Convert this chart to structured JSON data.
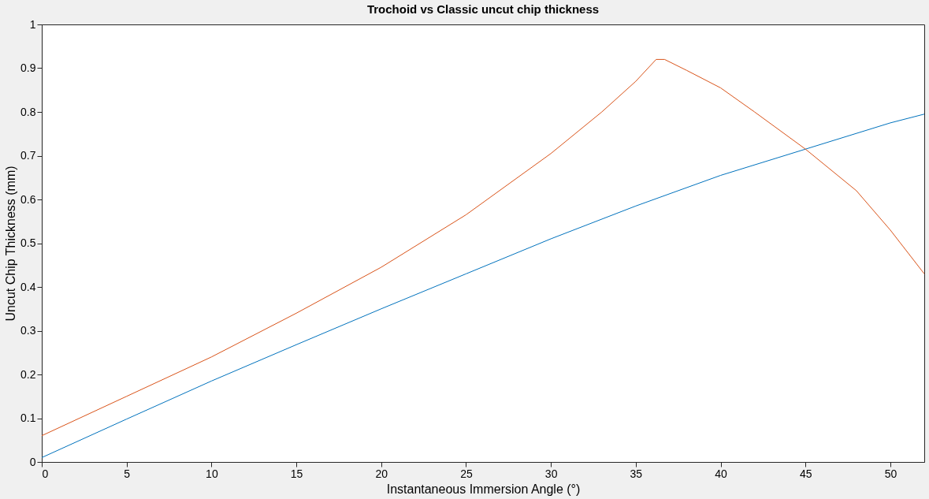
{
  "chart_data": {
    "type": "line",
    "title": "Trochoid vs Classic uncut chip thickness",
    "xlabel": "Instantaneous Immersion Angle (°)",
    "ylabel": "Uncut Chip Thickness (mm)",
    "xlim": [
      0,
      52
    ],
    "xticks": [
      0,
      5,
      10,
      15,
      20,
      25,
      30,
      35,
      40,
      45,
      50
    ],
    "ylim": [
      0,
      1
    ],
    "yticks": [
      0,
      0.1,
      0.2,
      0.3,
      0.4,
      0.5,
      0.6,
      0.7,
      0.8,
      0.9,
      1
    ],
    "grid": false,
    "legend": false,
    "marker": "none",
    "line_style": "solid",
    "series": [
      {
        "color": "#0072bd",
        "x": [
          0,
          5,
          10,
          15,
          20,
          25,
          30,
          35,
          40,
          45,
          50,
          52
        ],
        "values": [
          0.01,
          0.098,
          0.185,
          0.268,
          0.35,
          0.43,
          0.51,
          0.585,
          0.655,
          0.715,
          0.775,
          0.795
        ]
      },
      {
        "color": "#d95319",
        "x": [
          0,
          5,
          10,
          15,
          20,
          25,
          30,
          33,
          35,
          36.2,
          36.7,
          38,
          40,
          42,
          45,
          48,
          50,
          52
        ],
        "values": [
          0.06,
          0.15,
          0.24,
          0.34,
          0.445,
          0.565,
          0.705,
          0.8,
          0.87,
          0.92,
          0.92,
          0.895,
          0.855,
          0.8,
          0.715,
          0.62,
          0.53,
          0.43
        ]
      }
    ]
  }
}
